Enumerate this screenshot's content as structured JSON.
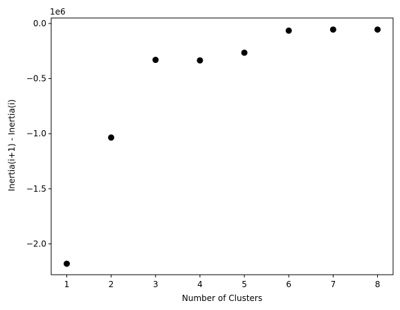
{
  "chart_data": {
    "type": "scatter",
    "xlabel": "Number of Clusters",
    "ylabel": "Inertia(i+1) - Inertia(i)",
    "y_offset_label": "1e6",
    "x": [
      1,
      2,
      3,
      4,
      5,
      6,
      7,
      8
    ],
    "y": [
      -2.18,
      -1.035,
      -0.33,
      -0.335,
      -0.265,
      -0.065,
      -0.055,
      -0.055
    ],
    "xlim": [
      0.65,
      8.35
    ],
    "ylim": [
      -2.28,
      0.05
    ],
    "x_ticks": [
      1,
      2,
      3,
      4,
      5,
      6,
      7,
      8
    ],
    "x_tick_labels": [
      "1",
      "2",
      "3",
      "4",
      "5",
      "6",
      "7",
      "8"
    ],
    "y_ticks": [
      -2.0,
      -1.5,
      -1.0,
      -0.5,
      0.0
    ],
    "y_tick_labels": [
      "−2.0",
      "−1.5",
      "−1.0",
      "−0.5",
      "0.0"
    ],
    "marker_color": "#000000",
    "grid": false
  }
}
